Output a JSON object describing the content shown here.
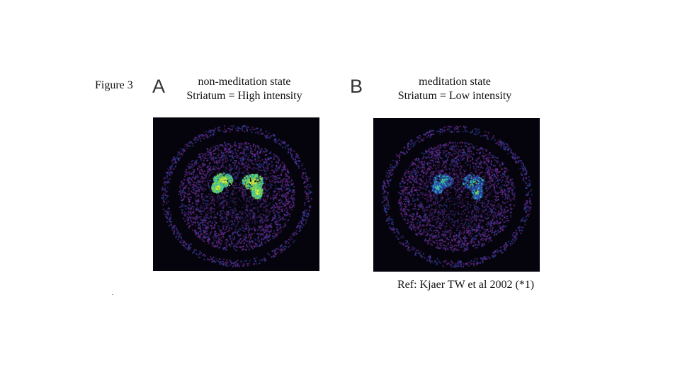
{
  "figure": {
    "label": "Figure 3",
    "reference": "Ref: Kjaer TW et al 2002 (*1)"
  },
  "panels": [
    {
      "letter": "A",
      "title": "non-meditation state",
      "subtitle": "Striatum = High intensity",
      "striatum_intensity": "high"
    },
    {
      "letter": "B",
      "title": "meditation state",
      "subtitle": "Striatum = Low intensity",
      "striatum_intensity": "low"
    }
  ],
  "colors": {
    "scan_background": "#05040c",
    "cortex_purple": "#6a2a8e",
    "cortex_blue": "#2c3fa0",
    "striatum_cyan": "#2bb6c4",
    "striatum_green": "#7fd64a",
    "striatum_yellow": "#e4ef4a"
  }
}
